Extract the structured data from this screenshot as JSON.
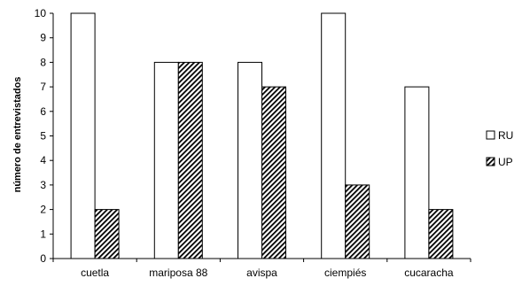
{
  "chart_data": {
    "type": "bar",
    "title": "",
    "xlabel": "",
    "ylabel": "número de entrevistados",
    "categories": [
      "cuetla",
      "mariposa 88",
      "avispa",
      "ciempiés",
      "cucaracha"
    ],
    "series": [
      {
        "name": "RU",
        "values": [
          10,
          8,
          8,
          10,
          7
        ],
        "fill": "#ffffff",
        "pattern": "none"
      },
      {
        "name": "UP",
        "values": [
          2,
          8,
          7,
          3,
          2
        ],
        "fill": "#ffffff",
        "pattern": "diagonal-hatch"
      }
    ],
    "ylim": [
      0,
      10
    ],
    "yticks": [
      "0",
      "1",
      "2",
      "3",
      "4",
      "5",
      "6",
      "7",
      "8",
      "9",
      "10"
    ],
    "grid": false,
    "legend_position": "right",
    "colors": {
      "bar_stroke": "#000000",
      "hatch": "#000000"
    }
  }
}
